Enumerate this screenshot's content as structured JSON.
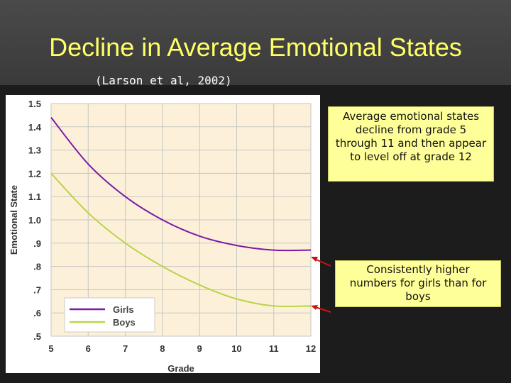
{
  "slide": {
    "title": "Decline in Average Emotional States",
    "citation": "(Larson et al, 2002)"
  },
  "callouts": [
    "Average emotional states decline from grade 5 through 11 and then appear to level off at grade 12",
    "Consistently higher numbers for girls than for boys"
  ],
  "chart_data": {
    "type": "line",
    "xlabel": "Grade",
    "ylabel": "Emotional State",
    "x_ticks": [
      "5",
      "6",
      "7",
      "8",
      "9",
      "10",
      "11",
      "12"
    ],
    "y_ticks": [
      ".5",
      ".6",
      ".7",
      ".8",
      ".9",
      "1.0",
      "1.1",
      "1.2",
      "1.3",
      "1.4",
      "1.5"
    ],
    "xlim": [
      5,
      12
    ],
    "ylim": [
      0.5,
      1.5
    ],
    "grid": true,
    "legend_position": "bottom-left",
    "x": [
      5,
      6,
      7,
      8,
      9,
      10,
      11,
      12
    ],
    "series": [
      {
        "name": "Girls",
        "color": "#7a1aa6",
        "values": [
          1.44,
          1.24,
          1.1,
          1.0,
          0.93,
          0.89,
          0.87,
          0.87
        ]
      },
      {
        "name": "Boys",
        "color": "#b8d44a",
        "values": [
          1.2,
          1.03,
          0.9,
          0.8,
          0.72,
          0.66,
          0.63,
          0.63
        ]
      }
    ],
    "plot_background": "#fdf0d8"
  }
}
